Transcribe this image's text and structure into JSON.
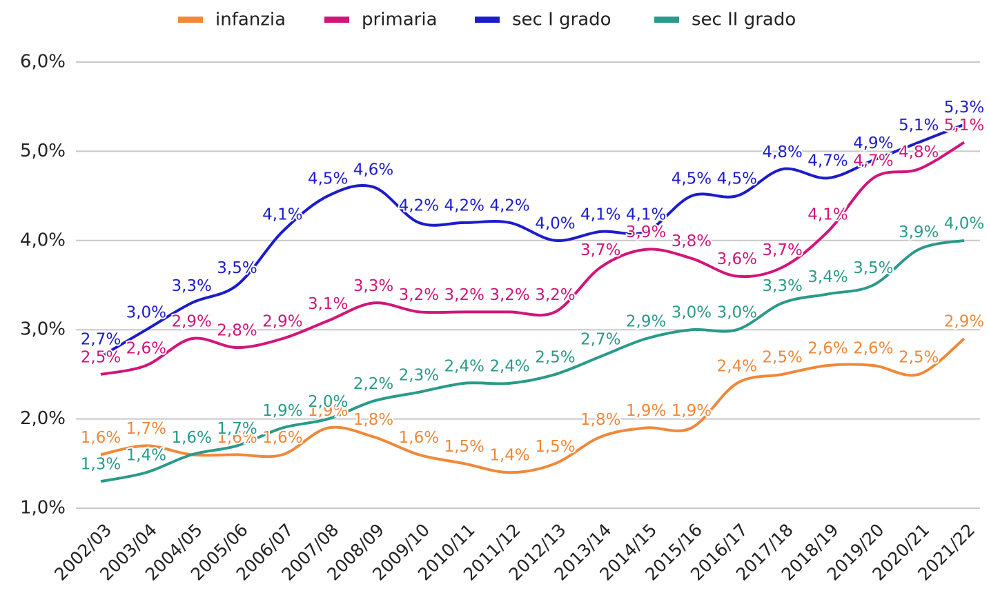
{
  "chart_data": {
    "type": "line",
    "categories": [
      "2002/03",
      "2003/04",
      "2004/05",
      "2005/06",
      "2006/07",
      "2007/08",
      "2008/09",
      "2009/10",
      "2010/11",
      "2011/12",
      "2012/13",
      "2013/14",
      "2014/15",
      "2015/16",
      "2016/17",
      "2017/18",
      "2018/19",
      "2019/20",
      "2020/21",
      "2021/22"
    ],
    "series": [
      {
        "name": "infanzia",
        "color": "#f0883a",
        "values": [
          1.6,
          1.7,
          1.6,
          1.6,
          1.6,
          1.9,
          1.8,
          1.6,
          1.5,
          1.4,
          1.5,
          1.8,
          1.9,
          1.9,
          2.4,
          2.5,
          2.6,
          2.6,
          2.5,
          2.9
        ],
        "value_labels": [
          "1,6%",
          "1,7%",
          "1,6%",
          "1,6%",
          "1,6%",
          "1,9%",
          "1,8%",
          "1,6%",
          "1,5%",
          "1,4%",
          "1,5%",
          "1,8%",
          "1,9%",
          "1,9%",
          "2,4%",
          "2,5%",
          "2,6%",
          "2,6%",
          "2,5%",
          "2,9%"
        ]
      },
      {
        "name": "primaria",
        "color": "#d2157a",
        "values": [
          2.5,
          2.6,
          2.9,
          2.8,
          2.9,
          3.1,
          3.3,
          3.2,
          3.2,
          3.2,
          3.2,
          3.7,
          3.9,
          3.8,
          3.6,
          3.7,
          4.1,
          4.7,
          4.8,
          5.1
        ],
        "value_labels": [
          "2,5%",
          "2,6%",
          "2,9%",
          "2,8%",
          "2,9%",
          "3,1%",
          "3,3%",
          "3,2%",
          "3,2%",
          "3,2%",
          "3,2%",
          "3,7%",
          "3,9%",
          "3,8%",
          "3,6%",
          "3,7%",
          "4,1%",
          "4,7%",
          "4,8%",
          "5,1%"
        ]
      },
      {
        "name": "sec I grado",
        "color": "#1c1ccc",
        "values": [
          2.7,
          3.0,
          3.3,
          3.5,
          4.1,
          4.5,
          4.6,
          4.2,
          4.2,
          4.2,
          4.0,
          4.1,
          4.1,
          4.5,
          4.5,
          4.8,
          4.7,
          4.9,
          5.1,
          5.3
        ],
        "value_labels": [
          "2,7%",
          "3,0%",
          "3,3%",
          "3,5%",
          "4,1%",
          "4,5%",
          "4,6%",
          "4,2%",
          "4,2%",
          "4,2%",
          "4,0%",
          "4,1%",
          "4,1%",
          "4,5%",
          "4,5%",
          "4,8%",
          "4,7%",
          "4,9%",
          "5,1%",
          "5,3%"
        ]
      },
      {
        "name": "sec II grado",
        "color": "#2a9a8a",
        "values": [
          1.3,
          1.4,
          1.6,
          1.7,
          1.9,
          2.0,
          2.2,
          2.3,
          2.4,
          2.4,
          2.5,
          2.7,
          2.9,
          3.0,
          3.0,
          3.3,
          3.4,
          3.5,
          3.9,
          4.0
        ],
        "value_labels": [
          "1,3%",
          "1,4%",
          "1,6%",
          "1,7%",
          "1,9%",
          "2,0%",
          "2,2%",
          "2,3%",
          "2,4%",
          "2,4%",
          "2,5%",
          "2,7%",
          "2,9%",
          "3,0%",
          "3,0%",
          "3,3%",
          "3,4%",
          "3,5%",
          "3,9%",
          "4,0%"
        ]
      }
    ],
    "ylim": [
      1,
      6
    ],
    "yticks": [
      {
        "value": 1,
        "label": "1,0%"
      },
      {
        "value": 2,
        "label": "2,0%"
      },
      {
        "value": 3,
        "label": "3,0%"
      },
      {
        "value": 4,
        "label": "4,0%"
      },
      {
        "value": 5,
        "label": "5,0%"
      },
      {
        "value": 6,
        "label": "6,0%"
      }
    ],
    "grid": true,
    "legend": "top"
  }
}
